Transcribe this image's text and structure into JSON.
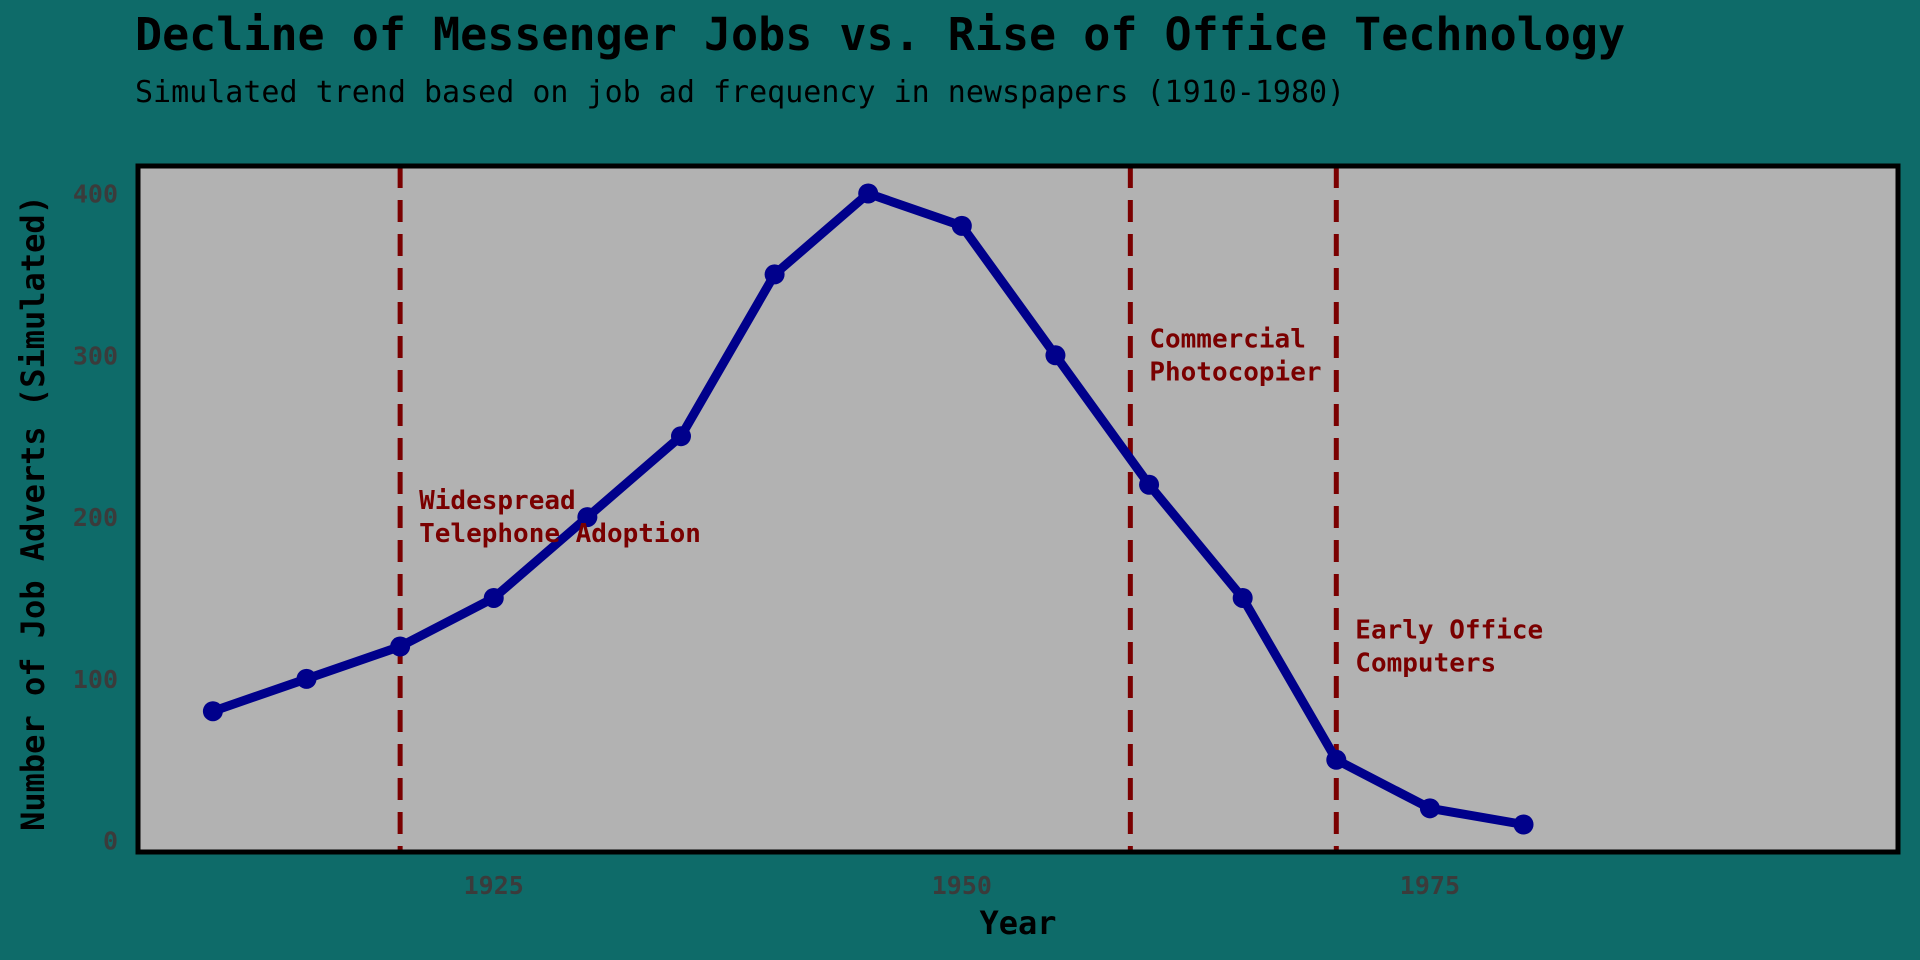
{
  "chart_data": {
    "type": "line",
    "title": "Decline of Messenger Jobs vs. Rise of Office Technology",
    "subtitle": "Simulated trend based on job ad frequency in newspapers (1910-1980)",
    "xlabel": "Year",
    "ylabel": "Number of Job Adverts (Simulated)",
    "xlim": [
      1906,
      2000
    ],
    "ylim": [
      -7,
      417
    ],
    "xticks": [
      1925,
      1950,
      1975
    ],
    "yticks": [
      0,
      100,
      200,
      300,
      400
    ],
    "grid": false,
    "legend": "none",
    "series": [
      {
        "x": [
          1910,
          1915,
          1920,
          1925,
          1930,
          1935,
          1940,
          1945,
          1950,
          1955,
          1960,
          1965,
          1970,
          1975,
          1980
        ],
        "y": [
          80,
          100,
          120,
          150,
          200,
          250,
          350,
          400,
          380,
          300,
          220,
          150,
          50,
          20,
          10
        ],
        "color": "#00008b"
      }
    ],
    "events": [
      {
        "x": 1920,
        "label_lines": [
          "Widespread",
          "Telephone Adoption"
        ],
        "label_y": 200
      },
      {
        "x": 1959,
        "label_lines": [
          "Commercial",
          "Photocopier"
        ],
        "label_y": 300
      },
      {
        "x": 1970,
        "label_lines": [
          "Early Office",
          "Computers"
        ],
        "label_y": 120
      }
    ],
    "colors": {
      "background": "#0e6b69",
      "plot_background": "#b2b2b2",
      "line": "#00008b",
      "event_line": "#7a0000",
      "annotation": "#7a0000",
      "tick_label": "#3b3b3b"
    }
  }
}
